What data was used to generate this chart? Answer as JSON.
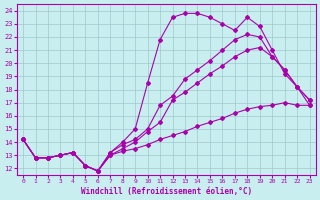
{
  "xlabel": "Windchill (Refroidissement éolien,°C)",
  "bg_color": "#c8eef0",
  "line_color": "#aa00aa",
  "grid_color": "#a0c8cc",
  "xlim": [
    -0.5,
    23.5
  ],
  "ylim": [
    11.5,
    24.5
  ],
  "xticks": [
    0,
    1,
    2,
    3,
    4,
    5,
    6,
    7,
    8,
    9,
    10,
    11,
    12,
    13,
    14,
    15,
    16,
    17,
    18,
    19,
    20,
    21,
    22,
    23
  ],
  "yticks": [
    12,
    13,
    14,
    15,
    16,
    17,
    18,
    19,
    20,
    21,
    22,
    23,
    24
  ],
  "lines": [
    {
      "x": [
        0,
        1,
        2,
        3,
        4,
        5,
        6,
        7,
        8,
        9,
        10,
        11,
        12,
        13,
        14,
        15,
        16,
        17,
        18,
        19,
        20,
        21,
        22,
        23
      ],
      "y": [
        14.2,
        12.8,
        12.8,
        13.0,
        13.2,
        12.2,
        11.8,
        13.0,
        13.3,
        13.5,
        13.8,
        14.2,
        14.5,
        14.8,
        15.2,
        15.5,
        15.8,
        16.2,
        16.5,
        16.7,
        16.8,
        17.0,
        16.8,
        16.8
      ],
      "marker": "D",
      "markersize": 2.0,
      "linewidth": 0.8,
      "linestyle": "-"
    },
    {
      "x": [
        0,
        1,
        2,
        3,
        4,
        5,
        6,
        7,
        8,
        9,
        10,
        11,
        12,
        13,
        14,
        15,
        16,
        17,
        18,
        19,
        20,
        21,
        22,
        23
      ],
      "y": [
        14.2,
        12.8,
        12.8,
        13.0,
        13.2,
        12.2,
        11.8,
        13.0,
        13.5,
        14.0,
        14.8,
        15.5,
        17.2,
        17.8,
        18.5,
        19.2,
        19.8,
        20.5,
        21.0,
        21.2,
        20.5,
        19.5,
        18.2,
        17.2
      ],
      "marker": "D",
      "markersize": 2.0,
      "linewidth": 0.8,
      "linestyle": "-"
    },
    {
      "x": [
        0,
        1,
        2,
        3,
        4,
        5,
        6,
        7,
        8,
        9,
        10,
        11,
        12,
        13,
        14,
        15,
        16,
        17,
        18,
        19,
        20,
        21,
        22,
        23
      ],
      "y": [
        14.2,
        12.8,
        12.8,
        13.0,
        13.2,
        12.2,
        11.8,
        13.2,
        14.0,
        15.0,
        18.5,
        21.8,
        23.5,
        23.8,
        23.8,
        23.5,
        23.0,
        22.5,
        23.5,
        22.8,
        21.0,
        19.2,
        18.2,
        16.8
      ],
      "marker": "D",
      "markersize": 2.0,
      "linewidth": 0.8,
      "linestyle": "-"
    },
    {
      "x": [
        0,
        1,
        2,
        3,
        4,
        5,
        6,
        7,
        8,
        9,
        10,
        11,
        12,
        13,
        14,
        15,
        16,
        17,
        18,
        19,
        20,
        21,
        22,
        23
      ],
      "y": [
        14.2,
        12.8,
        12.8,
        13.0,
        13.2,
        12.2,
        11.8,
        13.2,
        13.8,
        14.2,
        15.0,
        16.8,
        17.5,
        18.8,
        19.5,
        20.2,
        21.0,
        21.8,
        22.2,
        22.0,
        20.5,
        19.5,
        18.2,
        17.2
      ],
      "marker": "D",
      "markersize": 2.0,
      "linewidth": 0.8,
      "linestyle": "-"
    }
  ]
}
